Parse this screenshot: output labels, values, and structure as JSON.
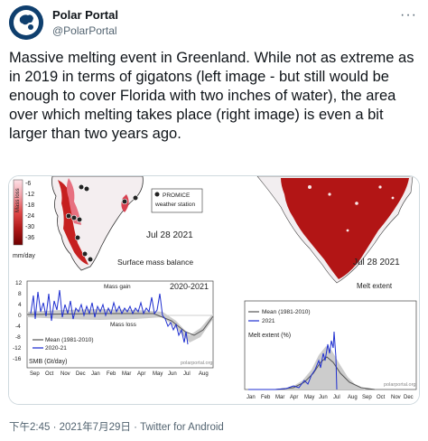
{
  "user": {
    "display_name": "Polar Portal",
    "handle": "@PolarPortal",
    "more_label": "···"
  },
  "tweet": {
    "text": "Massive melting event in Greenland. While not as extreme as in 2019 in terms of gigatons (left image - but still would be enough to cover Florida with two inches of water), the area over which melting takes place (right image) is even a bit larger than two years ago."
  },
  "left_image": {
    "colorbar_title": "Mass loss",
    "colorbar_ticks": [
      "-6",
      "-12",
      "-18",
      "-24",
      "-30",
      "-36"
    ],
    "colorbar_unit": "mm/day",
    "promice_line1": "PROMICE",
    "promice_line2": "weather station",
    "date": "Jul 28 2021",
    "map_caption": "Surface mass balance",
    "plot_range_label": "2020-2021",
    "mass_gain": "Mass gain",
    "mass_loss": "Mass loss",
    "legend_mean": "Mean (1981-2010)",
    "legend_year": "2020-21",
    "ylabel": "SMB (Gt/day)",
    "credit": "polarportal.org",
    "y_ticks": [
      "12",
      "8",
      "4",
      "0",
      "-4",
      "-8",
      "-12",
      "-16"
    ],
    "months": [
      "Sep",
      "Oct",
      "Nov",
      "Dec",
      "Jan",
      "Feb",
      "Mar",
      "Apr",
      "May",
      "Jun",
      "Jul",
      "Aug"
    ]
  },
  "right_image": {
    "date": "Jul 28 2021",
    "caption": "Melt extent",
    "legend_mean": "Mean (1981-2010)",
    "legend_year": "2021",
    "ylabel": "Melt extent (%)",
    "credit": "polarportal.org",
    "months": [
      "Jan",
      "Feb",
      "Mar",
      "Apr",
      "May",
      "Jun",
      "Jul",
      "Aug",
      "Sep",
      "Oct",
      "Nov",
      "Dec"
    ]
  },
  "footer": {
    "timestamp": "下午2:45 · 2021年7月29日",
    "separator": " · ",
    "source": "Twitter for Android"
  },
  "colors": {
    "melt_red": "#b21515",
    "series_blue": "#1f2fd0",
    "mean_gray": "#555555",
    "range_gray": "#c8c8c8"
  }
}
